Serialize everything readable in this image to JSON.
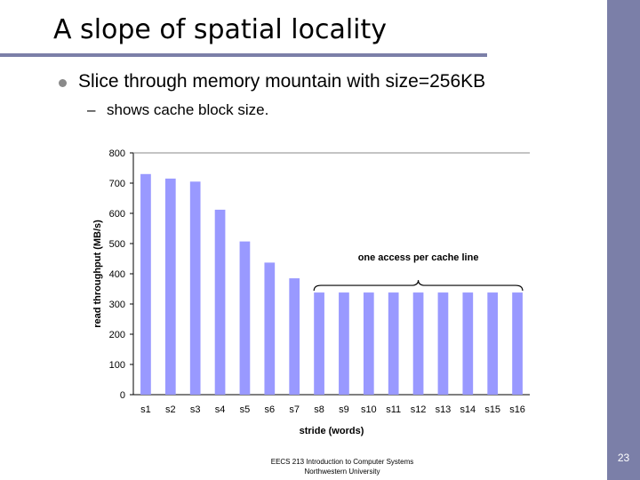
{
  "slide": {
    "title": "A slope of spatial locality",
    "bullet": "Slice through memory mountain with size=256KB",
    "sub_dash": "–",
    "sub_bullet": "shows cache block size.",
    "footer_line1": "EECS 213 Introduction to Computer Systems",
    "footer_line2": "Northwestern University",
    "page_number": "23",
    "accent_color": "#7b7fa8"
  },
  "chart_data": {
    "type": "bar",
    "categories": [
      "s1",
      "s2",
      "s3",
      "s4",
      "s5",
      "s6",
      "s7",
      "s8",
      "s9",
      "s10",
      "s11",
      "s12",
      "s13",
      "s14",
      "s15",
      "s16"
    ],
    "values": [
      730,
      715,
      705,
      612,
      507,
      437,
      385,
      338,
      338,
      338,
      338,
      338,
      338,
      338,
      338,
      338
    ],
    "xlabel": "stride (words)",
    "ylabel": "read throughput (MB/s)",
    "ylim": [
      0,
      800
    ],
    "yticks": [
      0,
      100,
      200,
      300,
      400,
      500,
      600,
      700,
      800
    ],
    "grid": false,
    "bar_color": "#9999ff",
    "annotation": "one access per cache line",
    "annotation_span": [
      "s8",
      "s16"
    ]
  }
}
